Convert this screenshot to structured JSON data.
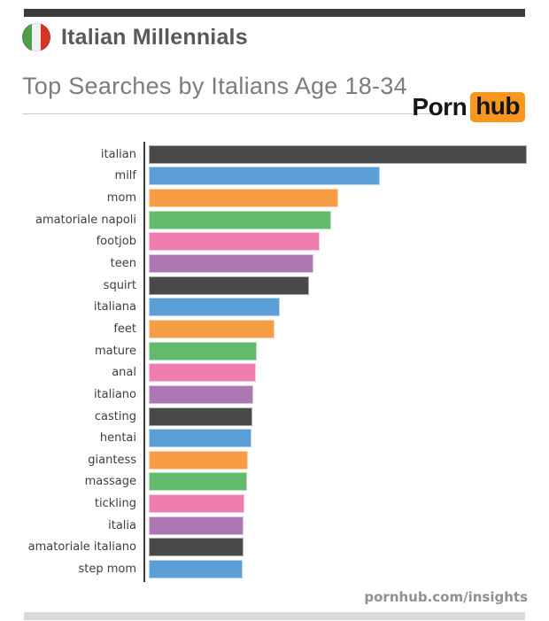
{
  "header": {
    "title": "Italian Millennials",
    "subtitle": "Top Searches by Italians Age 18-34",
    "flag": "italy-flag",
    "logo": {
      "porn": "Porn",
      "hub": "hub",
      "hub_bg_color": "#f7971d"
    }
  },
  "chart_data": {
    "type": "bar",
    "orientation": "horizontal",
    "title": "Top Searches by Italians Age 18-34",
    "xlabel": "",
    "ylabel": "",
    "categories": [
      "italian",
      "milf",
      "mom",
      "amatoriale napoli",
      "footjob",
      "teen",
      "squirt",
      "italiana",
      "feet",
      "mature",
      "anal",
      "italiano",
      "casting",
      "hentai",
      "giantess",
      "massage",
      "tickling",
      "italia",
      "amatoriale italiano",
      "step mom"
    ],
    "values": [
      100,
      60.9,
      49.9,
      48.0,
      44.9,
      43.3,
      42.1,
      34.4,
      32.9,
      28.2,
      28.0,
      27.3,
      27.1,
      26.8,
      25.9,
      25.6,
      24.9,
      24.7,
      24.7,
      24.5
    ],
    "value_unit": "relative search volume (% of top search, estimated from bar lengths; no numeric axis shown)",
    "xlim": [
      0,
      100
    ],
    "grid": false,
    "legend": false,
    "palette": [
      "#4a4a4a",
      "#5c9fd6",
      "#f79d46",
      "#62ba6c",
      "#ee7cad",
      "#ad77b4"
    ],
    "axis_color": "#3a3a3a"
  },
  "footer": {
    "site": "pornhub.com/insights"
  },
  "colors": {
    "top_bar": "#3b3b3b",
    "bottom_bar": "#d9d9d9",
    "title_text": "#58595b",
    "subtitle_text": "#7b7c7f",
    "flag_green": "#4f9e49",
    "flag_red": "#d63426"
  }
}
